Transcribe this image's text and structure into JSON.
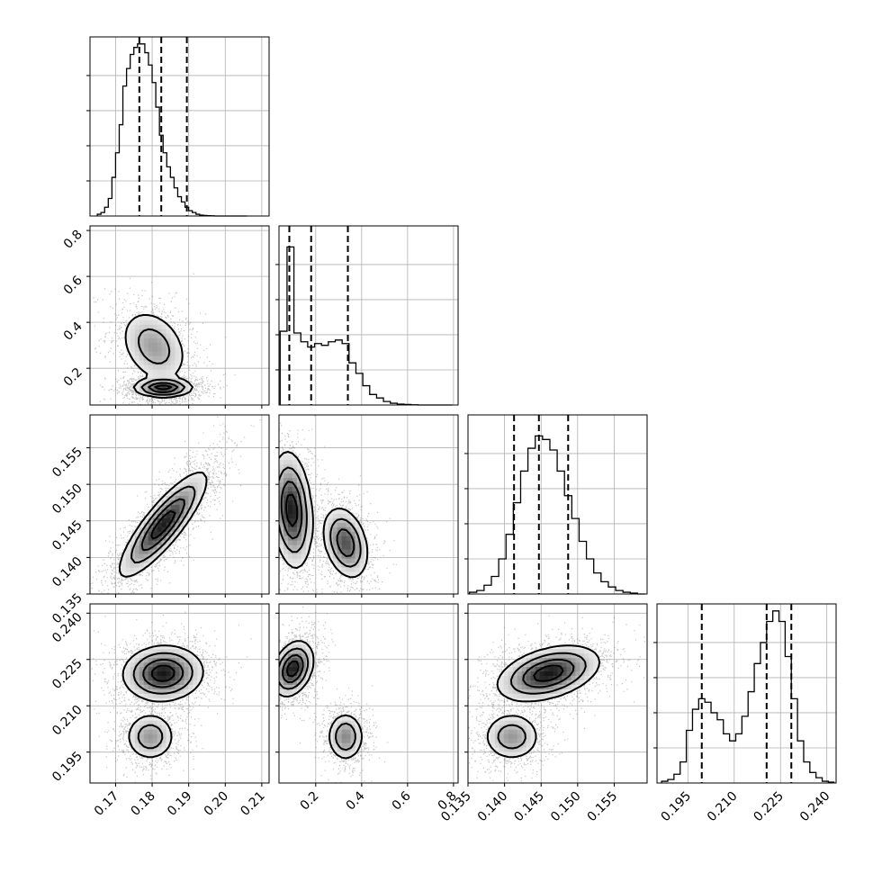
{
  "chart_data": {
    "type": "corner",
    "grid": true,
    "params": [
      {
        "range": [
          0.163,
          0.212
        ],
        "ticks": [
          0.17,
          0.18,
          0.19,
          0.2,
          0.21
        ],
        "tick_labels": [
          "0.17",
          "0.18",
          "0.19",
          "0.20",
          "0.21"
        ],
        "quantiles": [
          0.1765,
          0.1825,
          0.1895
        ],
        "hist_max": 1.0,
        "hist_x": [
          0.1655,
          0.1665,
          0.1675,
          0.1685,
          0.1695,
          0.1705,
          0.1715,
          0.1725,
          0.1735,
          0.1745,
          0.1755,
          0.1765,
          0.1775,
          0.1785,
          0.1795,
          0.1805,
          0.1815,
          0.1825,
          0.1835,
          0.1845,
          0.1855,
          0.1865,
          0.1875,
          0.1885,
          0.1895,
          0.1905,
          0.1915,
          0.1925,
          0.1935,
          0.1945,
          0.1955,
          0.1965,
          0.1975,
          0.1985,
          0.1995,
          0.2005,
          0.2015,
          0.2025,
          0.2035,
          0.2045,
          0.2055
        ],
        "hist_y": [
          0.01,
          0.02,
          0.05,
          0.1,
          0.22,
          0.36,
          0.52,
          0.74,
          0.84,
          0.92,
          0.96,
          0.98,
          0.98,
          0.93,
          0.86,
          0.76,
          0.62,
          0.46,
          0.36,
          0.28,
          0.22,
          0.16,
          0.11,
          0.08,
          0.05,
          0.03,
          0.02,
          0.01,
          0.005,
          0.003,
          0.002,
          0.001,
          0.0,
          0.0,
          0.0,
          0.0,
          0.0,
          0.0,
          0.0,
          0.0,
          0.0
        ],
        "hist_y_ticks": [
          0.2,
          0.4,
          0.6,
          0.8
        ]
      },
      {
        "range": [
          0.04,
          0.82
        ],
        "ticks": [
          0.2,
          0.4,
          0.6,
          0.8
        ],
        "tick_labels": [
          "0.2",
          "0.4",
          "0.6",
          "0.8"
        ],
        "quantiles": [
          0.085,
          0.18,
          0.34
        ],
        "hist_max": 1.0,
        "hist_x": [
          0.06,
          0.09,
          0.12,
          0.15,
          0.18,
          0.21,
          0.24,
          0.27,
          0.3,
          0.33,
          0.36,
          0.39,
          0.42,
          0.45,
          0.48,
          0.51,
          0.54,
          0.57,
          0.6,
          0.63,
          0.66,
          0.69,
          0.72,
          0.75,
          0.78
        ],
        "hist_y": [
          0.42,
          0.9,
          0.41,
          0.36,
          0.33,
          0.35,
          0.34,
          0.36,
          0.37,
          0.35,
          0.24,
          0.18,
          0.11,
          0.06,
          0.04,
          0.02,
          0.01,
          0.005,
          0.003,
          0.001,
          0.0,
          0.0,
          0.0,
          0.0,
          0.0
        ],
        "hist_y_ticks": [
          0.2,
          0.4,
          0.6,
          0.8
        ]
      },
      {
        "range": [
          0.135,
          0.1595
        ],
        "ticks": [
          0.135,
          0.14,
          0.145,
          0.15,
          0.155
        ],
        "tick_labels": [
          "0.135",
          "0.140",
          "0.145",
          "0.150",
          "0.155"
        ],
        "quantiles": [
          0.1413,
          0.1447,
          0.1487
        ],
        "hist_max": 1.0,
        "hist_x": [
          0.1357,
          0.1367,
          0.1377,
          0.1387,
          0.1397,
          0.1407,
          0.1417,
          0.1427,
          0.1437,
          0.1447,
          0.1457,
          0.1467,
          0.1477,
          0.1487,
          0.1497,
          0.1507,
          0.1517,
          0.1527,
          0.1537,
          0.1547,
          0.1557,
          0.1567,
          0.1577,
          0.1587
        ],
        "hist_y": [
          0.01,
          0.02,
          0.05,
          0.1,
          0.2,
          0.34,
          0.52,
          0.7,
          0.83,
          0.9,
          0.88,
          0.82,
          0.7,
          0.56,
          0.43,
          0.3,
          0.2,
          0.12,
          0.07,
          0.04,
          0.02,
          0.01,
          0.005,
          0.0
        ],
        "hist_y_ticks": [
          0.2,
          0.4,
          0.6,
          0.8
        ]
      },
      {
        "range": [
          0.185,
          0.243
        ],
        "ticks": [
          0.195,
          0.21,
          0.225,
          0.24
        ],
        "tick_labels": [
          "0.195",
          "0.210",
          "0.225",
          "0.240"
        ],
        "quantiles": [
          0.1995,
          0.2205,
          0.2285
        ],
        "hist_max": 1.0,
        "hist_x": [
          0.1875,
          0.1895,
          0.1915,
          0.1935,
          0.1955,
          0.1975,
          0.1995,
          0.2015,
          0.2035,
          0.2055,
          0.2075,
          0.2095,
          0.2115,
          0.2135,
          0.2155,
          0.2175,
          0.2195,
          0.2215,
          0.2235,
          0.2255,
          0.2275,
          0.2295,
          0.2315,
          0.2335,
          0.2355,
          0.2375,
          0.2395,
          0.2415
        ],
        "hist_y": [
          0.01,
          0.02,
          0.05,
          0.12,
          0.3,
          0.42,
          0.48,
          0.46,
          0.4,
          0.36,
          0.28,
          0.24,
          0.28,
          0.38,
          0.52,
          0.68,
          0.8,
          0.92,
          0.98,
          0.92,
          0.72,
          0.48,
          0.24,
          0.12,
          0.06,
          0.03,
          0.01,
          0.005
        ],
        "hist_y_ticks": [
          0.2,
          0.4,
          0.6,
          0.8
        ]
      }
    ],
    "pairs": [
      {
        "row": 1,
        "col": 0,
        "modes": [
          {
            "x": 0.1805,
            "y": 0.295,
            "sx": 0.0048,
            "sy": 0.085,
            "rho": -0.3,
            "w": 0.35
          },
          {
            "x": 0.183,
            "y": 0.115,
            "sx": 0.004,
            "sy": 0.02,
            "rho": 0.0,
            "w": 0.65
          }
        ],
        "peak": {
          "x": 0.181,
          "y": 0.11
        }
      },
      {
        "row": 2,
        "col": 0,
        "modes": [
          {
            "x": 0.183,
            "y": 0.1445,
            "sx": 0.006,
            "sy": 0.0036,
            "rho": 0.85,
            "w": 1.0
          }
        ],
        "peak": {
          "x": 0.18,
          "y": 0.143
        }
      },
      {
        "row": 2,
        "col": 1,
        "modes": [
          {
            "x": 0.095,
            "y": 0.1465,
            "sx": 0.045,
            "sy": 0.004,
            "rho": -0.2,
            "w": 0.55
          },
          {
            "x": 0.33,
            "y": 0.142,
            "sx": 0.05,
            "sy": 0.0025,
            "rho": -0.3,
            "w": 0.45
          }
        ],
        "peak": {
          "x": 0.085,
          "y": 0.1455
        }
      },
      {
        "row": 3,
        "col": 0,
        "modes": [
          {
            "x": 0.183,
            "y": 0.2205,
            "sx": 0.0055,
            "sy": 0.0045,
            "rho": 0.05,
            "w": 0.65
          },
          {
            "x": 0.1795,
            "y": 0.2,
            "sx": 0.0035,
            "sy": 0.004,
            "rho": 0.0,
            "w": 0.35
          }
        ],
        "peak": {
          "x": 0.1815,
          "y": 0.2205
        }
      },
      {
        "row": 3,
        "col": 1,
        "modes": [
          {
            "x": 0.1,
            "y": 0.222,
            "sx": 0.045,
            "sy": 0.0045,
            "rho": 0.3,
            "w": 0.62
          },
          {
            "x": 0.33,
            "y": 0.2,
            "sx": 0.04,
            "sy": 0.004,
            "rho": 0.0,
            "w": 0.38
          }
        ],
        "peak": {
          "x": 0.085,
          "y": 0.22
        }
      },
      {
        "row": 3,
        "col": 2,
        "modes": [
          {
            "x": 0.146,
            "y": 0.2205,
            "sx": 0.0035,
            "sy": 0.0045,
            "rho": 0.4,
            "w": 0.65
          },
          {
            "x": 0.141,
            "y": 0.2,
            "sx": 0.002,
            "sy": 0.004,
            "rho": 0.0,
            "w": 0.35
          }
        ],
        "peak": {
          "x": 0.1465,
          "y": 0.2215
        }
      }
    ]
  }
}
